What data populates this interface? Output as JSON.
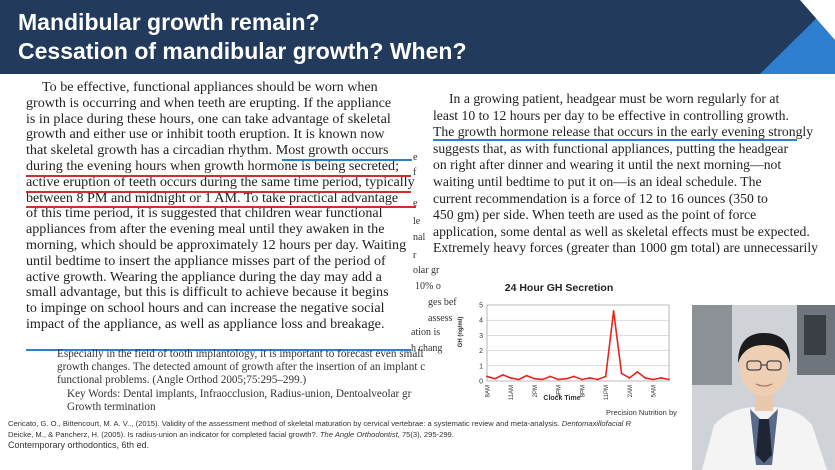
{
  "slide": {
    "title_line1": "Mandibular growth remain?",
    "title_line2": "Cessation of mandibular growth? When?",
    "colors": {
      "header": "#223a5c",
      "accent_blue": "#2f7fd0",
      "underline_red": "#d0302a",
      "underline_blue": "#2f7fd0"
    }
  },
  "left_text": {
    "lines": [
      "To be effective, functional appliances should be worn when",
      "growth is occurring and when teeth are erupting. If the appliance",
      "is in place during these hours, one can take advantage of skeletal",
      "growth and either use or inhibit tooth eruption. It is known now",
      "that skeletal growth has a circadian rhythm. Most growth occurs",
      "during the evening hours when growth hormone is being secreted;",
      "active eruption of teeth occurs during the same time period, typically",
      "between 8 PM and midnight or 1 AM. To take practical advantage",
      "of this time period, it is suggested that children wear functional",
      "appliances from after the evening meal until they awaken in the",
      "morning, which should be approximately 12 hours per day. Waiting",
      "until bedtime to insert the appliance misses part of the period of",
      "active growth. Wearing the appliance during the day may add a",
      "small advantage, but this is difficult to achieve because it begins",
      "to impinge on school hours and can increase the negative social",
      "impact of the appliance, as well as appliance loss and breakage."
    ]
  },
  "right_text": {
    "lines": [
      "In a growing patient, headgear must be worn regularly for at",
      "least 10 to 12 hours per day to be effective in controlling growth.",
      "The growth hormone release that occurs in the early evening strongly",
      "suggests that, as with functional appliances, putting the headgear",
      "on right after dinner and wearing it until the next morning—not",
      "waiting until bedtime to put it on—is an ideal schedule. The",
      "current recommendation is a force of 12 to 16 ounces (350 to",
      "450 gm) per side. When teeth are used as the point of force",
      "application, some dental as well as skeletal effects must be expected.",
      "Extremely heavy forces (greater than 1000 gm total) are unnecessarily"
    ]
  },
  "fragments": [
    "e",
    "f",
    "e",
    "le",
    "nal",
    "r",
    "olar gr",
    "10% o",
    "ges bef",
    "assess",
    "ation is",
    "h chang"
  ],
  "abstract": {
    "lines": [
      "Especially in the field of tooth implantology, it is important to forecast even small",
      "growth changes. The detected amount of growth after the insertion of an implant c",
      "functional problems. (Angle Orthod 2005;75:295–299.)"
    ],
    "keywords_line1": "Key Words: Dental implants, Infraocclusion, Radius-union, Dentoalveolar gr",
    "keywords_line2": "Growth termination"
  },
  "chart_data": {
    "type": "line",
    "title": "24 Hour GH Secretion",
    "xlabel": "Clock Time",
    "ylabel": "GH (ng/ml)",
    "ylim": [
      0,
      5
    ],
    "yticks": [
      "0",
      "1",
      "2",
      "3",
      "4",
      "5"
    ],
    "categories": [
      "8AM",
      "11AM",
      "2PM",
      "5PM",
      "8PM",
      "11PM",
      "2AM",
      "5AM"
    ],
    "x": [
      0,
      1,
      2,
      3,
      4,
      5,
      6,
      7,
      8,
      9,
      10,
      11,
      12,
      13,
      14,
      15,
      16,
      17,
      18,
      19,
      20,
      21,
      22,
      23
    ],
    "values": [
      0.3,
      0.15,
      0.4,
      0.2,
      0.1,
      0.35,
      0.15,
      0.1,
      0.3,
      0.1,
      0.15,
      0.3,
      0.1,
      0.2,
      0.1,
      0.3,
      4.6,
      0.5,
      0.2,
      0.6,
      0.2,
      0.1,
      0.2,
      0.1
    ],
    "line_color": "#e8231c",
    "grid": true
  },
  "credit": "Precision  Nutrition  by",
  "references": {
    "line1_plain": "Cericato, G. O., Bittencourt,  M. A. V.., (2015). Validity of the assessment method of skeletal maturation by cervical vertebrae: a systematic review and meta-analysis.  ",
    "line1_journal": "Dentomaxillofacial  R",
    "line2_plain": "Deicke, M., & Pancherz, H. (2005). Is radius-union  an indicator for completed facial growth?.  ",
    "line2_journal": "The Angle Orthodontist,",
    "line2_tail": "  75(3), 295-299.",
    "line3": "Contemporary orthodontics, 6th ed."
  }
}
